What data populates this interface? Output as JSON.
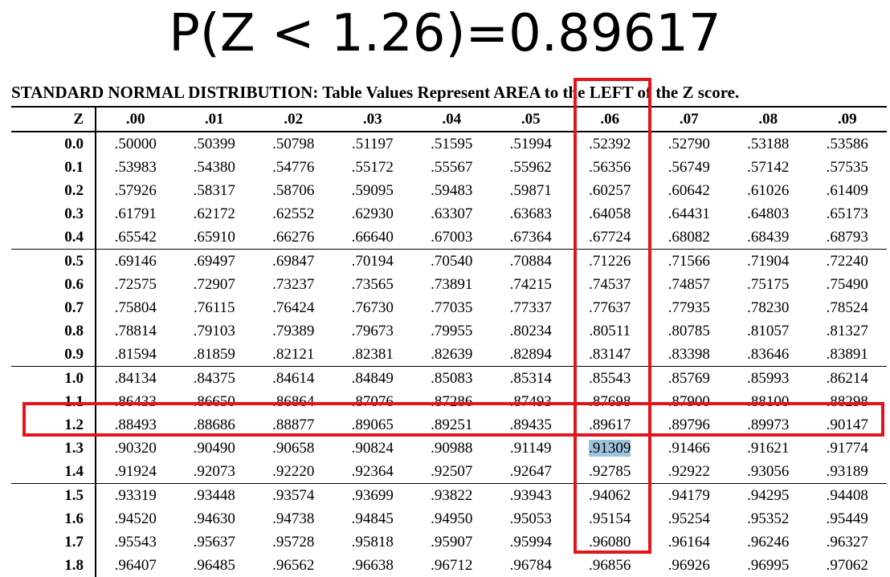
{
  "formula": "P(Z < 1.26)=0.89617",
  "caption": "STANDARD NORMAL DISTRIBUTION: Table Values Represent AREA to the LEFT of the Z score.",
  "highlight_color": "#e3141b",
  "selection_color": "#9fc3dd",
  "headers": [
    "Z",
    ".00",
    ".01",
    ".02",
    ".03",
    ".04",
    ".05",
    ".06",
    ".07",
    ".08",
    ".09"
  ],
  "rows": [
    {
      "z": "0.0",
      "values": [
        ".50000",
        ".50399",
        ".50798",
        ".51197",
        ".51595",
        ".51994",
        ".52392",
        ".52790",
        ".53188",
        ".53586"
      ]
    },
    {
      "z": "0.1",
      "values": [
        ".53983",
        ".54380",
        ".54776",
        ".55172",
        ".55567",
        ".55962",
        ".56356",
        ".56749",
        ".57142",
        ".57535"
      ]
    },
    {
      "z": "0.2",
      "values": [
        ".57926",
        ".58317",
        ".58706",
        ".59095",
        ".59483",
        ".59871",
        ".60257",
        ".60642",
        ".61026",
        ".61409"
      ]
    },
    {
      "z": "0.3",
      "values": [
        ".61791",
        ".62172",
        ".62552",
        ".62930",
        ".63307",
        ".63683",
        ".64058",
        ".64431",
        ".64803",
        ".65173"
      ]
    },
    {
      "z": "0.4",
      "values": [
        ".65542",
        ".65910",
        ".66276",
        ".66640",
        ".67003",
        ".67364",
        ".67724",
        ".68082",
        ".68439",
        ".68793"
      ]
    },
    {
      "z": "0.5",
      "values": [
        ".69146",
        ".69497",
        ".69847",
        ".70194",
        ".70540",
        ".70884",
        ".71226",
        ".71566",
        ".71904",
        ".72240"
      ]
    },
    {
      "z": "0.6",
      "values": [
        ".72575",
        ".72907",
        ".73237",
        ".73565",
        ".73891",
        ".74215",
        ".74537",
        ".74857",
        ".75175",
        ".75490"
      ]
    },
    {
      "z": "0.7",
      "values": [
        ".75804",
        ".76115",
        ".76424",
        ".76730",
        ".77035",
        ".77337",
        ".77637",
        ".77935",
        ".78230",
        ".78524"
      ]
    },
    {
      "z": "0.8",
      "values": [
        ".78814",
        ".79103",
        ".79389",
        ".79673",
        ".79955",
        ".80234",
        ".80511",
        ".80785",
        ".81057",
        ".81327"
      ]
    },
    {
      "z": "0.9",
      "values": [
        ".81594",
        ".81859",
        ".82121",
        ".82381",
        ".82639",
        ".82894",
        ".83147",
        ".83398",
        ".83646",
        ".83891"
      ]
    },
    {
      "z": "1.0",
      "values": [
        ".84134",
        ".84375",
        ".84614",
        ".84849",
        ".85083",
        ".85314",
        ".85543",
        ".85769",
        ".85993",
        ".86214"
      ]
    },
    {
      "z": "1.1",
      "values": [
        ".86433",
        ".86650",
        ".86864",
        ".87076",
        ".87286",
        ".87493",
        ".87698",
        ".87900",
        ".88100",
        ".88298"
      ]
    },
    {
      "z": "1.2",
      "values": [
        ".88493",
        ".88686",
        ".88877",
        ".89065",
        ".89251",
        ".89435",
        ".89617",
        ".89796",
        ".89973",
        ".90147"
      ]
    },
    {
      "z": "1.3",
      "values": [
        ".90320",
        ".90490",
        ".90658",
        ".90824",
        ".90988",
        ".91149",
        ".91309",
        ".91466",
        ".91621",
        ".91774"
      ]
    },
    {
      "z": "1.4",
      "values": [
        ".91924",
        ".92073",
        ".92220",
        ".92364",
        ".92507",
        ".92647",
        ".92785",
        ".92922",
        ".93056",
        ".93189"
      ]
    },
    {
      "z": "1.5",
      "values": [
        ".93319",
        ".93448",
        ".93574",
        ".93699",
        ".93822",
        ".93943",
        ".94062",
        ".94179",
        ".94295",
        ".94408"
      ]
    },
    {
      "z": "1.6",
      "values": [
        ".94520",
        ".94630",
        ".94738",
        ".94845",
        ".94950",
        ".95053",
        ".95154",
        ".95254",
        ".95352",
        ".95449"
      ]
    },
    {
      "z": "1.7",
      "values": [
        ".95543",
        ".95637",
        ".95728",
        ".95818",
        ".95907",
        ".95994",
        ".96080",
        ".96164",
        ".96246",
        ".96327"
      ]
    },
    {
      "z": "1.8",
      "values": [
        ".96407",
        ".96485",
        ".96562",
        ".96638",
        ".96712",
        ".96784",
        ".96856",
        ".96926",
        ".96995",
        ".97062"
      ]
    }
  ],
  "highlighted_row": "1.2",
  "highlighted_column": ".06",
  "selected_cell": {
    "z": "1.3",
    "column": ".06"
  }
}
